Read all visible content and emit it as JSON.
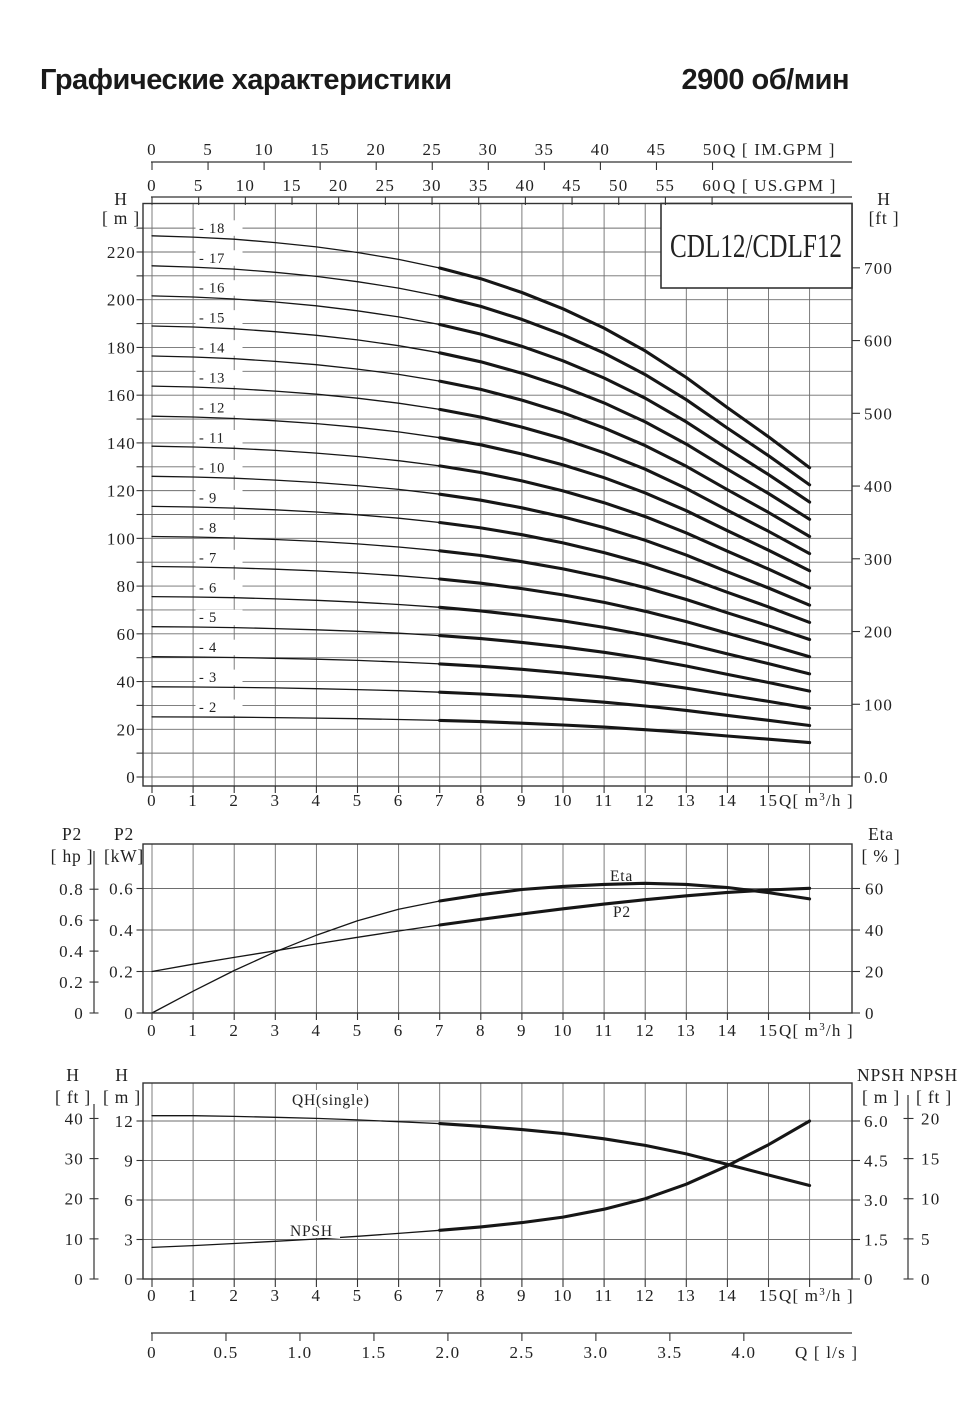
{
  "header": {
    "title": "Графические характеристики",
    "rpm": "2900 об/мин"
  },
  "model_box": {
    "label": "CDL12/CDLF12"
  },
  "chart_data": [
    {
      "id": "hq-multistage",
      "type": "line",
      "title": "CDL12/CDLF12",
      "x": [
        0,
        1,
        2,
        3,
        4,
        5,
        6,
        7,
        8,
        9,
        10,
        11,
        12,
        13,
        14,
        15,
        16
      ],
      "duty_range_start_q": 7,
      "axes": {
        "top_im": {
          "label": "Q [ IM.GPM ]",
          "ticks": [
            0,
            5,
            10,
            15,
            20,
            25,
            30,
            35,
            40,
            45,
            50
          ]
        },
        "top_us": {
          "label": "Q [ US.GPM ]",
          "ticks": [
            0,
            5,
            10,
            15,
            20,
            25,
            30,
            35,
            40,
            45,
            50,
            55,
            60
          ]
        },
        "left": {
          "name": "H",
          "unit": "[ m ]",
          "ticks": [
            0,
            20,
            40,
            60,
            80,
            100,
            120,
            140,
            160,
            180,
            200,
            220
          ],
          "minor_step": 10,
          "range": [
            0,
            240
          ]
        },
        "right": {
          "name": "H",
          "unit": "[ft ]",
          "ticks": [
            "0.0",
            "100",
            "200",
            "300",
            "400",
            "500",
            "600",
            "700"
          ]
        },
        "bottom": {
          "label": "Q[ m³/h ]",
          "ticks": [
            0,
            1,
            2,
            3,
            4,
            5,
            6,
            7,
            8,
            9,
            10,
            11,
            12,
            13,
            14,
            15
          ],
          "range": [
            0,
            16
          ]
        }
      },
      "stage_label_prefix": "- ",
      "stage_counts": [
        2,
        3,
        4,
        5,
        6,
        7,
        8,
        9,
        10,
        11,
        12,
        13,
        14,
        15,
        16,
        17,
        18
      ],
      "per_stage_head_m": [
        12.6,
        12.57,
        12.52,
        12.44,
        12.34,
        12.21,
        12.05,
        11.85,
        11.6,
        11.28,
        10.9,
        10.45,
        9.92,
        9.3,
        8.6,
        7.92,
        7.2
      ]
    },
    {
      "id": "power-efficiency",
      "type": "line",
      "x": [
        0,
        1,
        2,
        3,
        4,
        5,
        6,
        7,
        8,
        9,
        10,
        11,
        12,
        13,
        14,
        15,
        16
      ],
      "duty_range_start_q": 7,
      "axes": {
        "left_outer": {
          "name": "P2",
          "unit": "[ hp ]",
          "ticks": [
            "0",
            "0.2",
            "0.4",
            "0.6",
            "0.8"
          ]
        },
        "left_inner": {
          "name": "P2",
          "unit": "[kW]",
          "ticks": [
            "0",
            "0.2",
            "0.4",
            "0.6"
          ]
        },
        "right": {
          "name": "Eta",
          "unit": "[ % ]",
          "ticks": [
            "0",
            "20",
            "40",
            "60"
          ]
        },
        "bottom": {
          "label": "Q[ m³/h ]",
          "ticks": [
            0,
            1,
            2,
            3,
            4,
            5,
            6,
            7,
            8,
            9,
            10,
            11,
            12,
            13,
            14,
            15
          ],
          "range": [
            0,
            16
          ]
        }
      },
      "series": [
        {
          "name": "P2",
          "unit": "kW",
          "values": [
            0.2,
            0.235,
            0.268,
            0.3,
            0.333,
            0.365,
            0.395,
            0.424,
            0.451,
            0.477,
            0.502,
            0.525,
            0.546,
            0.565,
            0.581,
            0.593,
            0.601
          ]
        },
        {
          "name": "Eta",
          "unit": "%",
          "values": [
            0,
            10.5,
            20.5,
            29.5,
            37.5,
            44.5,
            50.0,
            54.0,
            57.0,
            59.5,
            61.0,
            62.0,
            62.5,
            62.0,
            60.5,
            58.0,
            55.0
          ]
        }
      ]
    },
    {
      "id": "single-stage-npsh",
      "type": "line",
      "x": [
        0,
        1,
        2,
        3,
        4,
        5,
        6,
        7,
        8,
        9,
        10,
        11,
        12,
        13,
        14,
        15,
        16
      ],
      "duty_range_start_q": 7,
      "axes": {
        "left_outer": {
          "name": "H",
          "unit": "[ ft ]",
          "ticks": [
            0,
            10,
            20,
            30,
            40
          ]
        },
        "left_inner": {
          "name": "H",
          "unit": "[ m ]",
          "ticks": [
            0,
            3,
            6,
            9,
            12
          ]
        },
        "right_inner": {
          "name": "NPSH",
          "unit": "[ m ]",
          "ticks": [
            "0",
            "1.5",
            "3.0",
            "4.5",
            "6.0"
          ]
        },
        "right_outer": {
          "name": "NPSH",
          "unit": "[ ft ]",
          "ticks": [
            0,
            5,
            10,
            15,
            20
          ]
        },
        "bottom": {
          "label": "Q[ m³/h ]",
          "ticks": [
            0,
            1,
            2,
            3,
            4,
            5,
            6,
            7,
            8,
            9,
            10,
            11,
            12,
            13,
            14,
            15
          ],
          "range": [
            0,
            16
          ]
        },
        "bottom_ls": {
          "label": "Q [ l/s ]",
          "ticks": [
            "0",
            "0.5",
            "1.0",
            "1.5",
            "2.0",
            "2.5",
            "3.0",
            "3.5",
            "4.0"
          ]
        }
      },
      "series": [
        {
          "name": "QH(single)",
          "unit": "m",
          "values": [
            12.4,
            12.4,
            12.35,
            12.28,
            12.2,
            12.08,
            11.95,
            11.8,
            11.6,
            11.35,
            11.05,
            10.65,
            10.15,
            9.5,
            8.7,
            7.9,
            7.1
          ]
        },
        {
          "name": "NPSH",
          "unit": "m",
          "values": [
            1.2,
            1.27,
            1.35,
            1.43,
            1.52,
            1.62,
            1.73,
            1.85,
            1.98,
            2.14,
            2.35,
            2.65,
            3.05,
            3.6,
            4.3,
            5.1,
            6.0
          ]
        }
      ]
    }
  ]
}
